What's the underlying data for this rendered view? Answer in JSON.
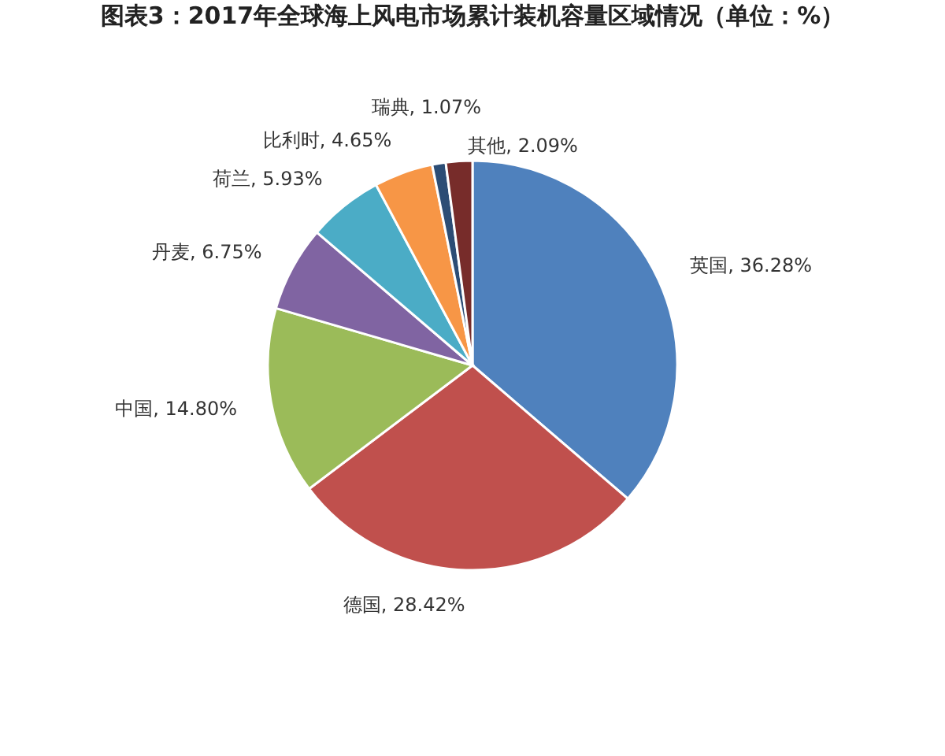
{
  "chart_data": {
    "type": "pie",
    "title": "图表3：2017年全球海上风电市场累计装机容量区域情况（单位：%）",
    "categories": [
      "英国",
      "德国",
      "中国",
      "丹麦",
      "荷兰",
      "比利时",
      "瑞典",
      "其他"
    ],
    "values": [
      36.28,
      28.42,
      14.8,
      6.75,
      5.93,
      4.65,
      1.07,
      2.09
    ],
    "value_labels": [
      "36.28%",
      "28.42%",
      "14.80%",
      "6.75%",
      "5.93%",
      "4.65%",
      "1.07%",
      "2.09%"
    ],
    "colors": [
      "#4f81bd",
      "#c0504d",
      "#9bbb59",
      "#8064a2",
      "#4bacc6",
      "#f79646",
      "#2c4d75",
      "#772c2a"
    ],
    "legend": false
  }
}
